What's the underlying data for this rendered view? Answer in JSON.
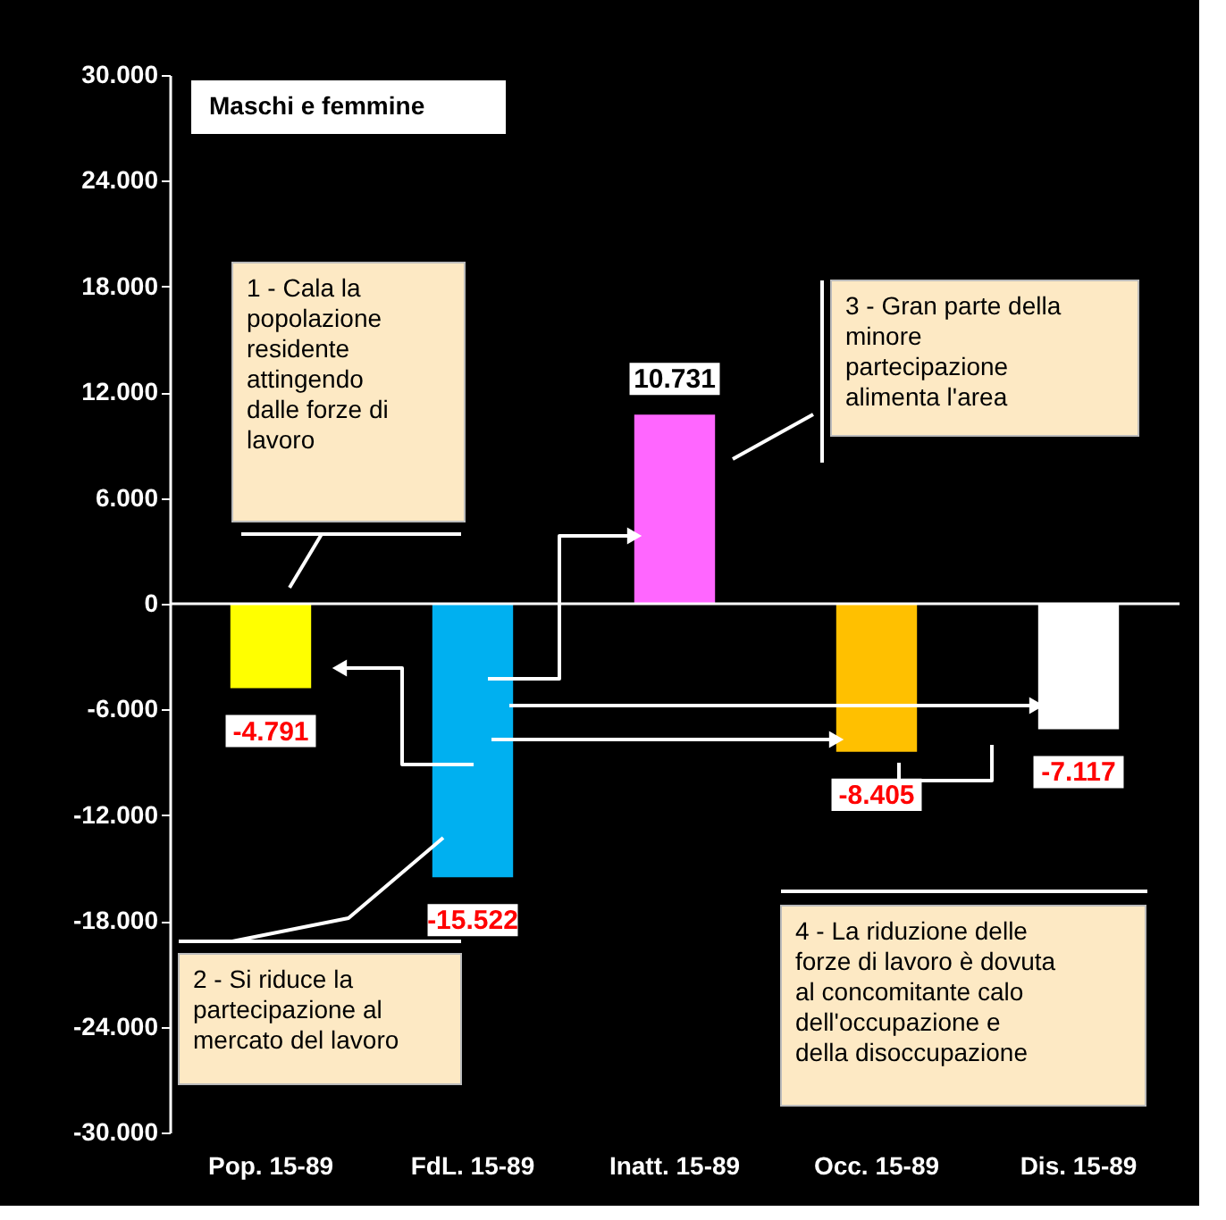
{
  "chart_data": {
    "type": "bar",
    "title": "Maschi e femmine",
    "categories": [
      "Pop. 15-89",
      "FdL. 15-89",
      "Inatt. 15-89",
      "Occ. 15-89",
      "Dis. 15-89"
    ],
    "values": [
      -4791,
      -15522,
      10731,
      -8405,
      -7117
    ],
    "colors": [
      "#ffff00",
      "#00b0f0",
      "#ff66ff",
      "#ffc000",
      "#ffffff"
    ],
    "value_labels": [
      "-4.791",
      "-15.522",
      "10.731",
      "-8.405",
      "-7.117"
    ],
    "ylim": [
      -30000,
      30000
    ],
    "yticks": [
      {
        "value": -30000,
        "label": "-30.000"
      },
      {
        "value": -24000,
        "label": "-24.000"
      },
      {
        "value": -18000,
        "label": "-18.000"
      },
      {
        "value": -12000,
        "label": "-12.000"
      },
      {
        "value": -6000,
        "label": "-6.000"
      },
      0,
      {
        "value": 6000,
        "label": "6.000"
      },
      {
        "value": 12000,
        "label": "12.000"
      },
      {
        "value": 18000,
        "label": "18.000"
      },
      {
        "value": 24000,
        "label": "24.000"
      },
      {
        "value": 30000,
        "label": "30.000"
      }
    ],
    "ref_lines": [
      {
        "axis": "y",
        "value": 0,
        "color": "#ffffff"
      }
    ],
    "annotations": [
      "1 - Cala la\npopolazione\nresidente\nattingendo\ndalle forze di\nlavoro",
      "2 - Si riduce la\npartecipazione al\nmercato del lavoro",
      "3 - Gran parte della\nminore\npartecipazione\nalimenta l'area",
      "4 - La riduzione delle\nforze di lavoro è dovuta\nal concomitante calo\ndell'occupazione e\ndella disoccupazione"
    ]
  }
}
